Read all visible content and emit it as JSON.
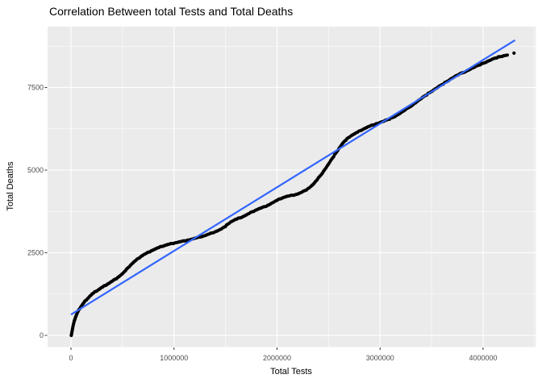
{
  "window": {
    "background": "#FFFFFF"
  },
  "chart_data": {
    "type": "scatter",
    "title": "Correlation Between total Tests and Total Deaths",
    "xlabel": "Total Tests",
    "ylabel": "Total Deaths",
    "grid": "on",
    "legend": "none",
    "style": {
      "panel_bg": "#EBEBEB",
      "grid_major_color": "#FFFFFF",
      "grid_minor_color": "#FFFFFF",
      "tick_mark_color": "#333333",
      "tick_label_color": "#4D4D4D",
      "point_color": "#000000",
      "point_radius": 2.1,
      "fit_line_color": "#3366FF",
      "fit_line_width": 2.2
    },
    "x_axis": {
      "range": [
        -227000,
        4513000
      ],
      "ticks": [
        0,
        1000000,
        2000000,
        3000000,
        4000000
      ],
      "tick_labels": [
        "0",
        "1000000",
        "2000000",
        "3000000",
        "4000000"
      ],
      "minor_ticks": [
        500000,
        1500000,
        2500000,
        3500000,
        4500000
      ]
    },
    "y_axis": {
      "range": [
        -354,
        9341
      ],
      "ticks": [
        0,
        2500,
        5000,
        7500
      ],
      "tick_labels": [
        "0",
        "2500",
        "5000",
        "7500"
      ],
      "minor_ticks": [
        1250,
        3750,
        6250,
        8750
      ]
    },
    "series": [
      {
        "name": "observations",
        "type": "points",
        "color": "#000000",
        "points": [
          [
            3000,
            0
          ],
          [
            8000,
            80
          ],
          [
            14000,
            180
          ],
          [
            20000,
            280
          ],
          [
            28000,
            380
          ],
          [
            36000,
            470
          ],
          [
            45000,
            555
          ],
          [
            55000,
            630
          ],
          [
            67000,
            715
          ],
          [
            80000,
            790
          ],
          [
            95000,
            860
          ],
          [
            110000,
            925
          ],
          [
            125000,
            990
          ],
          [
            142000,
            1055
          ],
          [
            160000,
            1110
          ],
          [
            180000,
            1175
          ],
          [
            200000,
            1235
          ],
          [
            220000,
            1285
          ],
          [
            240000,
            1330
          ],
          [
            262000,
            1370
          ],
          [
            285000,
            1420
          ],
          [
            308000,
            1465
          ],
          [
            332000,
            1510
          ],
          [
            356000,
            1555
          ],
          [
            380000,
            1600
          ],
          [
            405000,
            1650
          ],
          [
            430000,
            1700
          ],
          [
            455000,
            1755
          ],
          [
            480000,
            1815
          ],
          [
            505000,
            1880
          ],
          [
            530000,
            1960
          ],
          [
            555000,
            2050
          ],
          [
            580000,
            2130
          ],
          [
            605000,
            2205
          ],
          [
            630000,
            2270
          ],
          [
            655000,
            2330
          ],
          [
            680000,
            2390
          ],
          [
            705000,
            2440
          ],
          [
            730000,
            2480
          ],
          [
            755000,
            2520
          ],
          [
            780000,
            2560
          ],
          [
            805000,
            2595
          ],
          [
            830000,
            2630
          ],
          [
            855000,
            2660
          ],
          [
            880000,
            2690
          ],
          [
            905000,
            2715
          ],
          [
            930000,
            2740
          ],
          [
            955000,
            2760
          ],
          [
            980000,
            2780
          ],
          [
            1010000,
            2800
          ],
          [
            1040000,
            2820
          ],
          [
            1070000,
            2840
          ],
          [
            1100000,
            2860
          ],
          [
            1130000,
            2880
          ],
          [
            1160000,
            2900
          ],
          [
            1190000,
            2925
          ],
          [
            1220000,
            2950
          ],
          [
            1250000,
            2975
          ],
          [
            1280000,
            3000
          ],
          [
            1310000,
            3030
          ],
          [
            1340000,
            3065
          ],
          [
            1370000,
            3100
          ],
          [
            1400000,
            3135
          ],
          [
            1430000,
            3175
          ],
          [
            1460000,
            3220
          ],
          [
            1490000,
            3280
          ],
          [
            1520000,
            3360
          ],
          [
            1550000,
            3430
          ],
          [
            1580000,
            3480
          ],
          [
            1610000,
            3520
          ],
          [
            1640000,
            3555
          ],
          [
            1670000,
            3595
          ],
          [
            1700000,
            3640
          ],
          [
            1730000,
            3690
          ],
          [
            1760000,
            3740
          ],
          [
            1790000,
            3785
          ],
          [
            1820000,
            3825
          ],
          [
            1850000,
            3860
          ],
          [
            1880000,
            3895
          ],
          [
            1910000,
            3935
          ],
          [
            1940000,
            3985
          ],
          [
            1970000,
            4035
          ],
          [
            2000000,
            4085
          ],
          [
            2030000,
            4130
          ],
          [
            2060000,
            4170
          ],
          [
            2090000,
            4200
          ],
          [
            2120000,
            4220
          ],
          [
            2150000,
            4240
          ],
          [
            2180000,
            4260
          ],
          [
            2210000,
            4290
          ],
          [
            2240000,
            4330
          ],
          [
            2270000,
            4380
          ],
          [
            2300000,
            4440
          ],
          [
            2330000,
            4510
          ],
          [
            2360000,
            4600
          ],
          [
            2390000,
            4710
          ],
          [
            2420000,
            4830
          ],
          [
            2450000,
            4960
          ],
          [
            2480000,
            5090
          ],
          [
            2510000,
            5230
          ],
          [
            2540000,
            5370
          ],
          [
            2570000,
            5510
          ],
          [
            2600000,
            5650
          ],
          [
            2630000,
            5780
          ],
          [
            2660000,
            5890
          ],
          [
            2690000,
            5975
          ],
          [
            2720000,
            6040
          ],
          [
            2750000,
            6095
          ],
          [
            2780000,
            6145
          ],
          [
            2810000,
            6195
          ],
          [
            2840000,
            6245
          ],
          [
            2870000,
            6290
          ],
          [
            2900000,
            6330
          ],
          [
            2930000,
            6365
          ],
          [
            2960000,
            6400
          ],
          [
            3000000,
            6440
          ],
          [
            3040000,
            6485
          ],
          [
            3080000,
            6535
          ],
          [
            3120000,
            6590
          ],
          [
            3160000,
            6655
          ],
          [
            3200000,
            6730
          ],
          [
            3240000,
            6810
          ],
          [
            3280000,
            6895
          ],
          [
            3320000,
            6985
          ],
          [
            3360000,
            7075
          ],
          [
            3400000,
            7165
          ],
          [
            3440000,
            7255
          ],
          [
            3480000,
            7340
          ],
          [
            3520000,
            7425
          ],
          [
            3560000,
            7505
          ],
          [
            3600000,
            7585
          ],
          [
            3640000,
            7665
          ],
          [
            3680000,
            7745
          ],
          [
            3720000,
            7820
          ],
          [
            3760000,
            7885
          ],
          [
            3800000,
            7945
          ],
          [
            3840000,
            8000
          ],
          [
            3880000,
            8060
          ],
          [
            3920000,
            8120
          ],
          [
            3960000,
            8175
          ],
          [
            4000000,
            8230
          ],
          [
            4040000,
            8285
          ],
          [
            4080000,
            8340
          ],
          [
            4120000,
            8390
          ],
          [
            4160000,
            8430
          ],
          [
            4200000,
            8460
          ],
          [
            4235000,
            8480
          ],
          [
            4300000,
            8540
          ]
        ]
      },
      {
        "name": "linear-fit",
        "type": "line",
        "color": "#3366FF",
        "points": [
          [
            0,
            630
          ],
          [
            4310000,
            8930
          ]
        ]
      }
    ]
  }
}
